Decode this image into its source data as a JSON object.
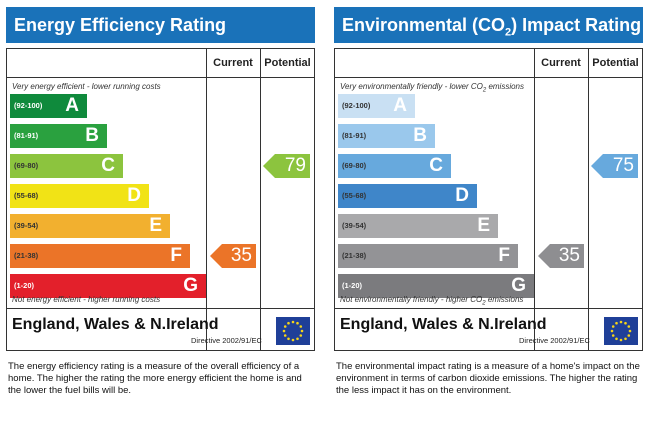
{
  "energy": {
    "title": "Energy Efficiency Rating",
    "col_current": "Current",
    "col_potential": "Potential",
    "top_note": "Very energy efficient - lower running costs",
    "bottom_note": "Not energy efficient - higher running costs",
    "region": "England, Wales & N.Ireland",
    "directive": "Directive 2002/91/EC",
    "description": "The energy efficiency rating is a measure of the overall efficiency of a home. The higher the rating the more energy efficient the home is and the lower the fuel bills will be.",
    "bands": [
      {
        "range": "(92-100)",
        "letter": "A",
        "color": "#0f8a3c",
        "range_color": "#ffffff"
      },
      {
        "range": "(81-91)",
        "letter": "B",
        "color": "#2aa13f",
        "range_color": "#ffffff"
      },
      {
        "range": "(69-80)",
        "letter": "C",
        "color": "#8cc43e",
        "range_color": "#333333"
      },
      {
        "range": "(55-68)",
        "letter": "D",
        "color": "#f1e316",
        "range_color": "#333333"
      },
      {
        "range": "(39-54)",
        "letter": "E",
        "color": "#f2b02f",
        "range_color": "#333333"
      },
      {
        "range": "(21-38)",
        "letter": "F",
        "color": "#eb7428",
        "range_color": "#333333"
      },
      {
        "range": "(1-20)",
        "letter": "G",
        "color": "#e3202b",
        "range_color": "#ffffff"
      }
    ],
    "current": {
      "value": "35",
      "band": "F",
      "color": "#eb7428"
    },
    "potential": {
      "value": "79",
      "band": "C",
      "color": "#8cc43e"
    }
  },
  "environmental": {
    "title_pre": "Environmental (CO",
    "title_sub": "2",
    "title_post": ") Impact Rating",
    "col_current": "Current",
    "col_potential": "Potential",
    "top_note_pre": "Very environmentally friendly - lower CO",
    "top_note_sub": "2",
    "top_note_post": " emissions",
    "bottom_note_pre": "Not environmentally friendly - higher CO",
    "bottom_note_sub": "2",
    "bottom_note_post": " emissions",
    "region": "England, Wales & N.Ireland",
    "directive": "Directive 2002/91/EC",
    "description": "The environmental impact rating is a measure of a home's impact on the environment in terms of carbon dioxide emissions. The higher the rating the less impact it has on the environment.",
    "bands": [
      {
        "range": "(92-100)",
        "letter": "A",
        "color": "#c9e0f3",
        "range_color": "#333333"
      },
      {
        "range": "(81-91)",
        "letter": "B",
        "color": "#9ac8ec",
        "range_color": "#333333"
      },
      {
        "range": "(69-80)",
        "letter": "C",
        "color": "#67a9dd",
        "range_color": "#333333"
      },
      {
        "range": "(55-68)",
        "letter": "D",
        "color": "#3f86c9",
        "range_color": "#333333"
      },
      {
        "range": "(39-54)",
        "letter": "E",
        "color": "#a9a9ab",
        "range_color": "#333333"
      },
      {
        "range": "(21-38)",
        "letter": "F",
        "color": "#939396",
        "range_color": "#333333"
      },
      {
        "range": "(1-20)",
        "letter": "G",
        "color": "#7b7b7e",
        "range_color": "#ffffff"
      }
    ],
    "current": {
      "value": "35",
      "band": "F",
      "color": "#8e8e91"
    },
    "potential": {
      "value": "75",
      "band": "C",
      "color": "#67a9dd"
    }
  },
  "chart_data": [
    {
      "type": "bar",
      "title": "Energy Efficiency Rating",
      "categories": [
        "A (92-100)",
        "B (81-91)",
        "C (69-80)",
        "D (55-68)",
        "E (39-54)",
        "F (21-38)",
        "G (1-20)"
      ],
      "current": 35,
      "potential": 79
    },
    {
      "type": "bar",
      "title": "Environmental (CO2) Impact Rating",
      "categories": [
        "A (92-100)",
        "B (81-91)",
        "C (69-80)",
        "D (55-68)",
        "E (39-54)",
        "F (21-38)",
        "G (1-20)"
      ],
      "current": 35,
      "potential": 75
    }
  ]
}
